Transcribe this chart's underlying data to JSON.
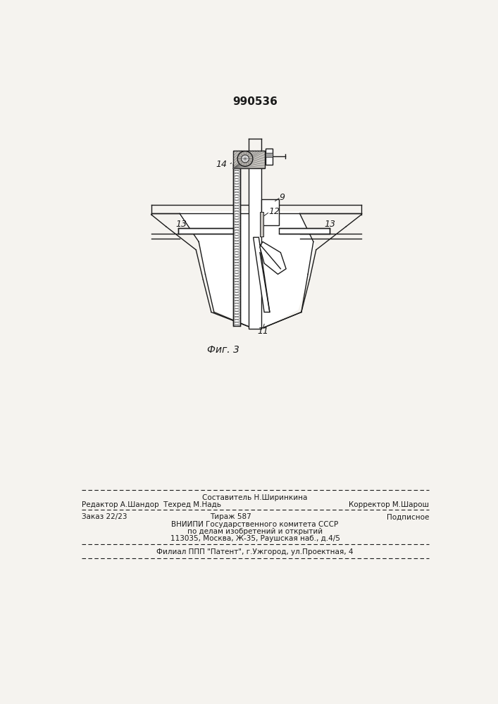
{
  "patent_number": "990536",
  "fig_label": "Фиг. 3",
  "footer_line1_center": "Составитель Н.Ширинкина",
  "footer_line2_left": "Редактор А.Шандор  Техред М.Надь",
  "footer_line2_right": "Корректор М.Шарош",
  "footer_line3_left": "Заказ 22/23",
  "footer_line3_mid": "Тираж 587",
  "footer_line3_right": "Подписное",
  "footer_line4": "ВНИИПИ Государственного комитета СССР",
  "footer_line5": "по делам изобретений и открытий",
  "footer_line6": "113035, Москва, Ж-35, Раушская наб., д.4/5",
  "footer_line7": "Филиал ППП \"Патент\", г.Ужгород, ул.Проектная, 4",
  "bg_color": "#f5f3ef",
  "line_color": "#1a1a1a",
  "label_9": "9",
  "label_11": "11",
  "label_12": "12",
  "label_13_left": "13",
  "label_13_right": "13",
  "label_14": "14"
}
